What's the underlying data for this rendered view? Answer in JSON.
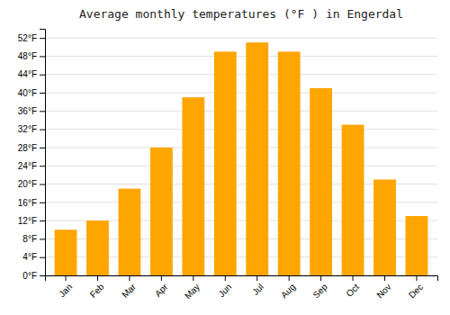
{
  "chart_data": {
    "type": "bar",
    "title": "Average monthly temperatures (°F ) in Engerdal",
    "categories": [
      "Jan",
      "Feb",
      "Mar",
      "Apr",
      "May",
      "Jun",
      "Jul",
      "Aug",
      "Sep",
      "Oct",
      "Nov",
      "Dec"
    ],
    "values": [
      10,
      12,
      19,
      28,
      39,
      49,
      51,
      49,
      41,
      33,
      21,
      13
    ],
    "color": "#FFA500",
    "ylim": [
      0,
      54
    ],
    "yticks": [
      {
        "value": 0,
        "label": "0°F"
      },
      {
        "value": 4,
        "label": "4°F"
      },
      {
        "value": 8,
        "label": "8°F"
      },
      {
        "value": 12,
        "label": "12°F"
      },
      {
        "value": 16,
        "label": "16°F"
      },
      {
        "value": 20,
        "label": "20°F"
      },
      {
        "value": 24,
        "label": "24°F"
      },
      {
        "value": 28,
        "label": "28°F"
      },
      {
        "value": 32,
        "label": "32°F"
      },
      {
        "value": 36,
        "label": "36°F"
      },
      {
        "value": 40,
        "label": "40°F"
      },
      {
        "value": 44,
        "label": "44°F"
      },
      {
        "value": 48,
        "label": "48°F"
      },
      {
        "value": 52,
        "label": "52°F"
      }
    ],
    "grid": true
  }
}
